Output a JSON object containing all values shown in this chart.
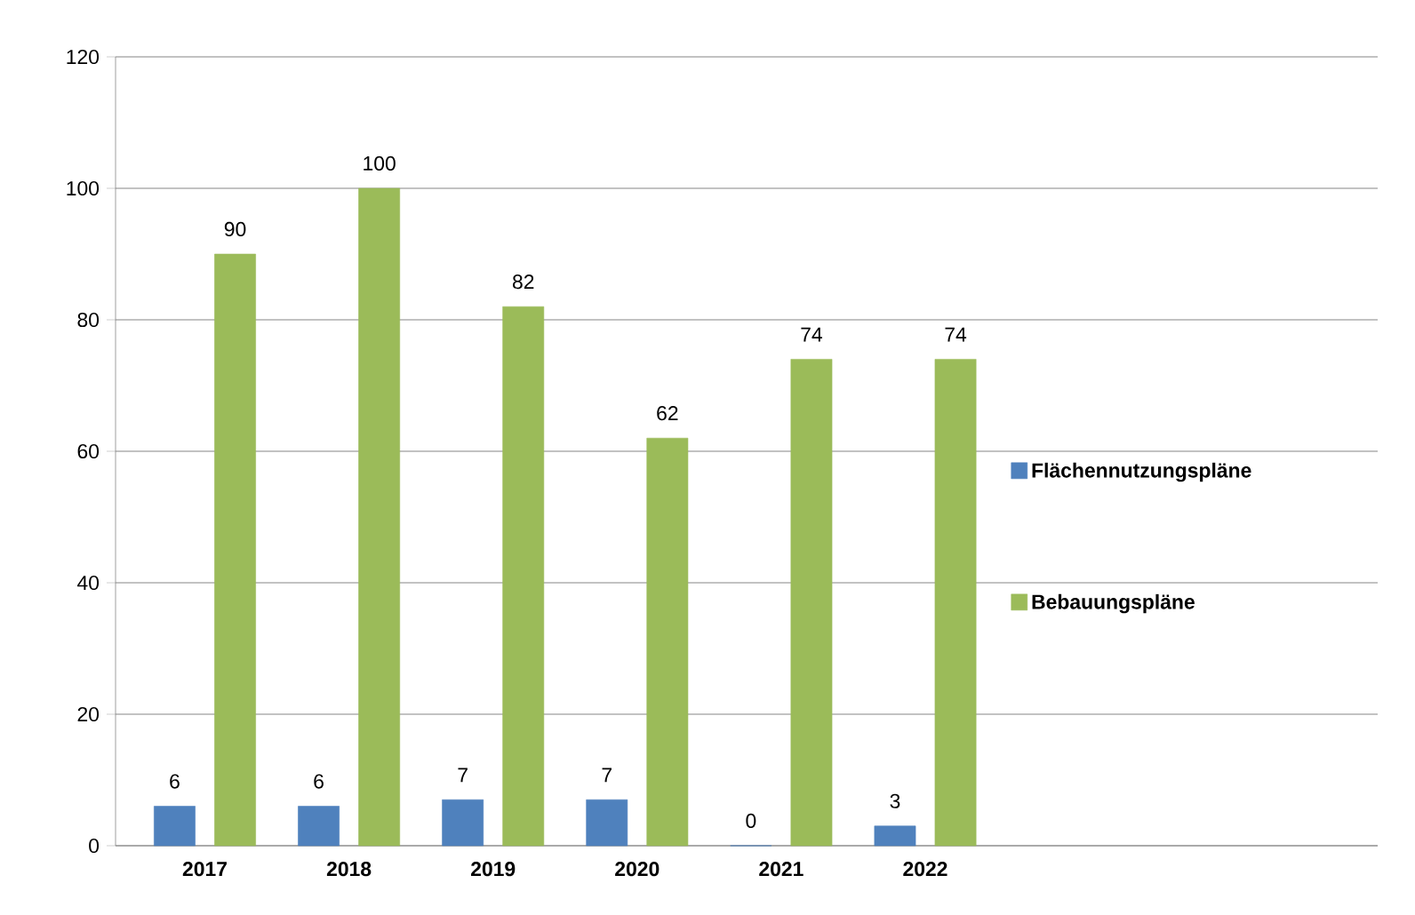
{
  "chart_data": {
    "type": "bar",
    "categories": [
      "2017",
      "2018",
      "2019",
      "2020",
      "2021",
      "2022"
    ],
    "series": [
      {
        "name": "Flächennutzungspläne",
        "color": "#4f81bd",
        "values": [
          6,
          6,
          7,
          7,
          0,
          3
        ]
      },
      {
        "name": "Bebauungspläne",
        "color": "#9bbb59",
        "values": [
          90,
          100,
          82,
          62,
          74,
          74
        ]
      }
    ],
    "ylim": [
      0,
      120
    ],
    "yticks": [
      0,
      20,
      40,
      60,
      80,
      100,
      120
    ],
    "grid": "y",
    "legend": "right",
    "data_labels": true
  }
}
